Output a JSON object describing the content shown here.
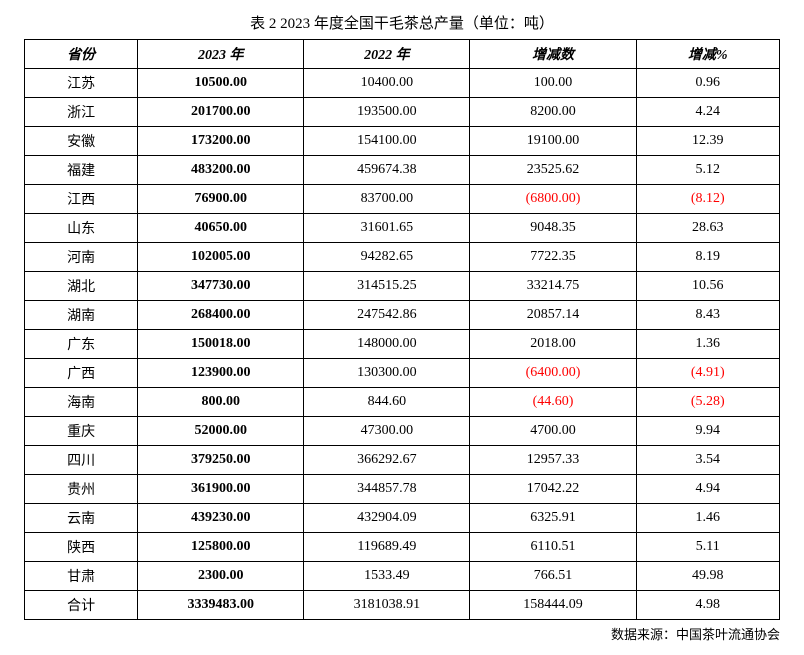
{
  "title": "表 2 2023 年度全国干毛茶总产量（单位：吨）",
  "columns": [
    "省份",
    "2023 年",
    "2022 年",
    "增减数",
    "增减%"
  ],
  "rows": [
    {
      "province": "江苏",
      "v2023": "10500.00",
      "v2022": "10400.00",
      "diff": "100.00",
      "pct": "0.96",
      "neg": false
    },
    {
      "province": "浙江",
      "v2023": "201700.00",
      "v2022": "193500.00",
      "diff": "8200.00",
      "pct": "4.24",
      "neg": false
    },
    {
      "province": "安徽",
      "v2023": "173200.00",
      "v2022": "154100.00",
      "diff": "19100.00",
      "pct": "12.39",
      "neg": false
    },
    {
      "province": "福建",
      "v2023": "483200.00",
      "v2022": "459674.38",
      "diff": "23525.62",
      "pct": "5.12",
      "neg": false
    },
    {
      "province": "江西",
      "v2023": "76900.00",
      "v2022": "83700.00",
      "diff": "(6800.00)",
      "pct": "(8.12)",
      "neg": true
    },
    {
      "province": "山东",
      "v2023": "40650.00",
      "v2022": "31601.65",
      "diff": "9048.35",
      "pct": "28.63",
      "neg": false
    },
    {
      "province": "河南",
      "v2023": "102005.00",
      "v2022": "94282.65",
      "diff": "7722.35",
      "pct": "8.19",
      "neg": false
    },
    {
      "province": "湖北",
      "v2023": "347730.00",
      "v2022": "314515.25",
      "diff": "33214.75",
      "pct": "10.56",
      "neg": false
    },
    {
      "province": "湖南",
      "v2023": "268400.00",
      "v2022": "247542.86",
      "diff": "20857.14",
      "pct": "8.43",
      "neg": false
    },
    {
      "province": "广东",
      "v2023": "150018.00",
      "v2022": "148000.00",
      "diff": "2018.00",
      "pct": "1.36",
      "neg": false
    },
    {
      "province": "广西",
      "v2023": "123900.00",
      "v2022": "130300.00",
      "diff": "(6400.00)",
      "pct": "(4.91)",
      "neg": true
    },
    {
      "province": "海南",
      "v2023": "800.00",
      "v2022": "844.60",
      "diff": "(44.60)",
      "pct": "(5.28)",
      "neg": true
    },
    {
      "province": "重庆",
      "v2023": "52000.00",
      "v2022": "47300.00",
      "diff": "4700.00",
      "pct": "9.94",
      "neg": false
    },
    {
      "province": "四川",
      "v2023": "379250.00",
      "v2022": "366292.67",
      "diff": "12957.33",
      "pct": "3.54",
      "neg": false
    },
    {
      "province": "贵州",
      "v2023": "361900.00",
      "v2022": "344857.78",
      "diff": "17042.22",
      "pct": "4.94",
      "neg": false
    },
    {
      "province": "云南",
      "v2023": "439230.00",
      "v2022": "432904.09",
      "diff": "6325.91",
      "pct": "1.46",
      "neg": false
    },
    {
      "province": "陕西",
      "v2023": "125800.00",
      "v2022": "119689.49",
      "diff": "6110.51",
      "pct": "5.11",
      "neg": false
    },
    {
      "province": "甘肃",
      "v2023": "2300.00",
      "v2022": "1533.49",
      "diff": "766.51",
      "pct": "49.98",
      "neg": false
    },
    {
      "province": "合计",
      "v2023": "3339483.00",
      "v2022": "3181038.91",
      "diff": "158444.09",
      "pct": "4.98",
      "neg": false
    }
  ],
  "source": "数据来源：中国茶叶流通协会",
  "colors": {
    "text": "#000000",
    "negative": "#ff0000",
    "border": "#000000",
    "background": "#ffffff"
  }
}
